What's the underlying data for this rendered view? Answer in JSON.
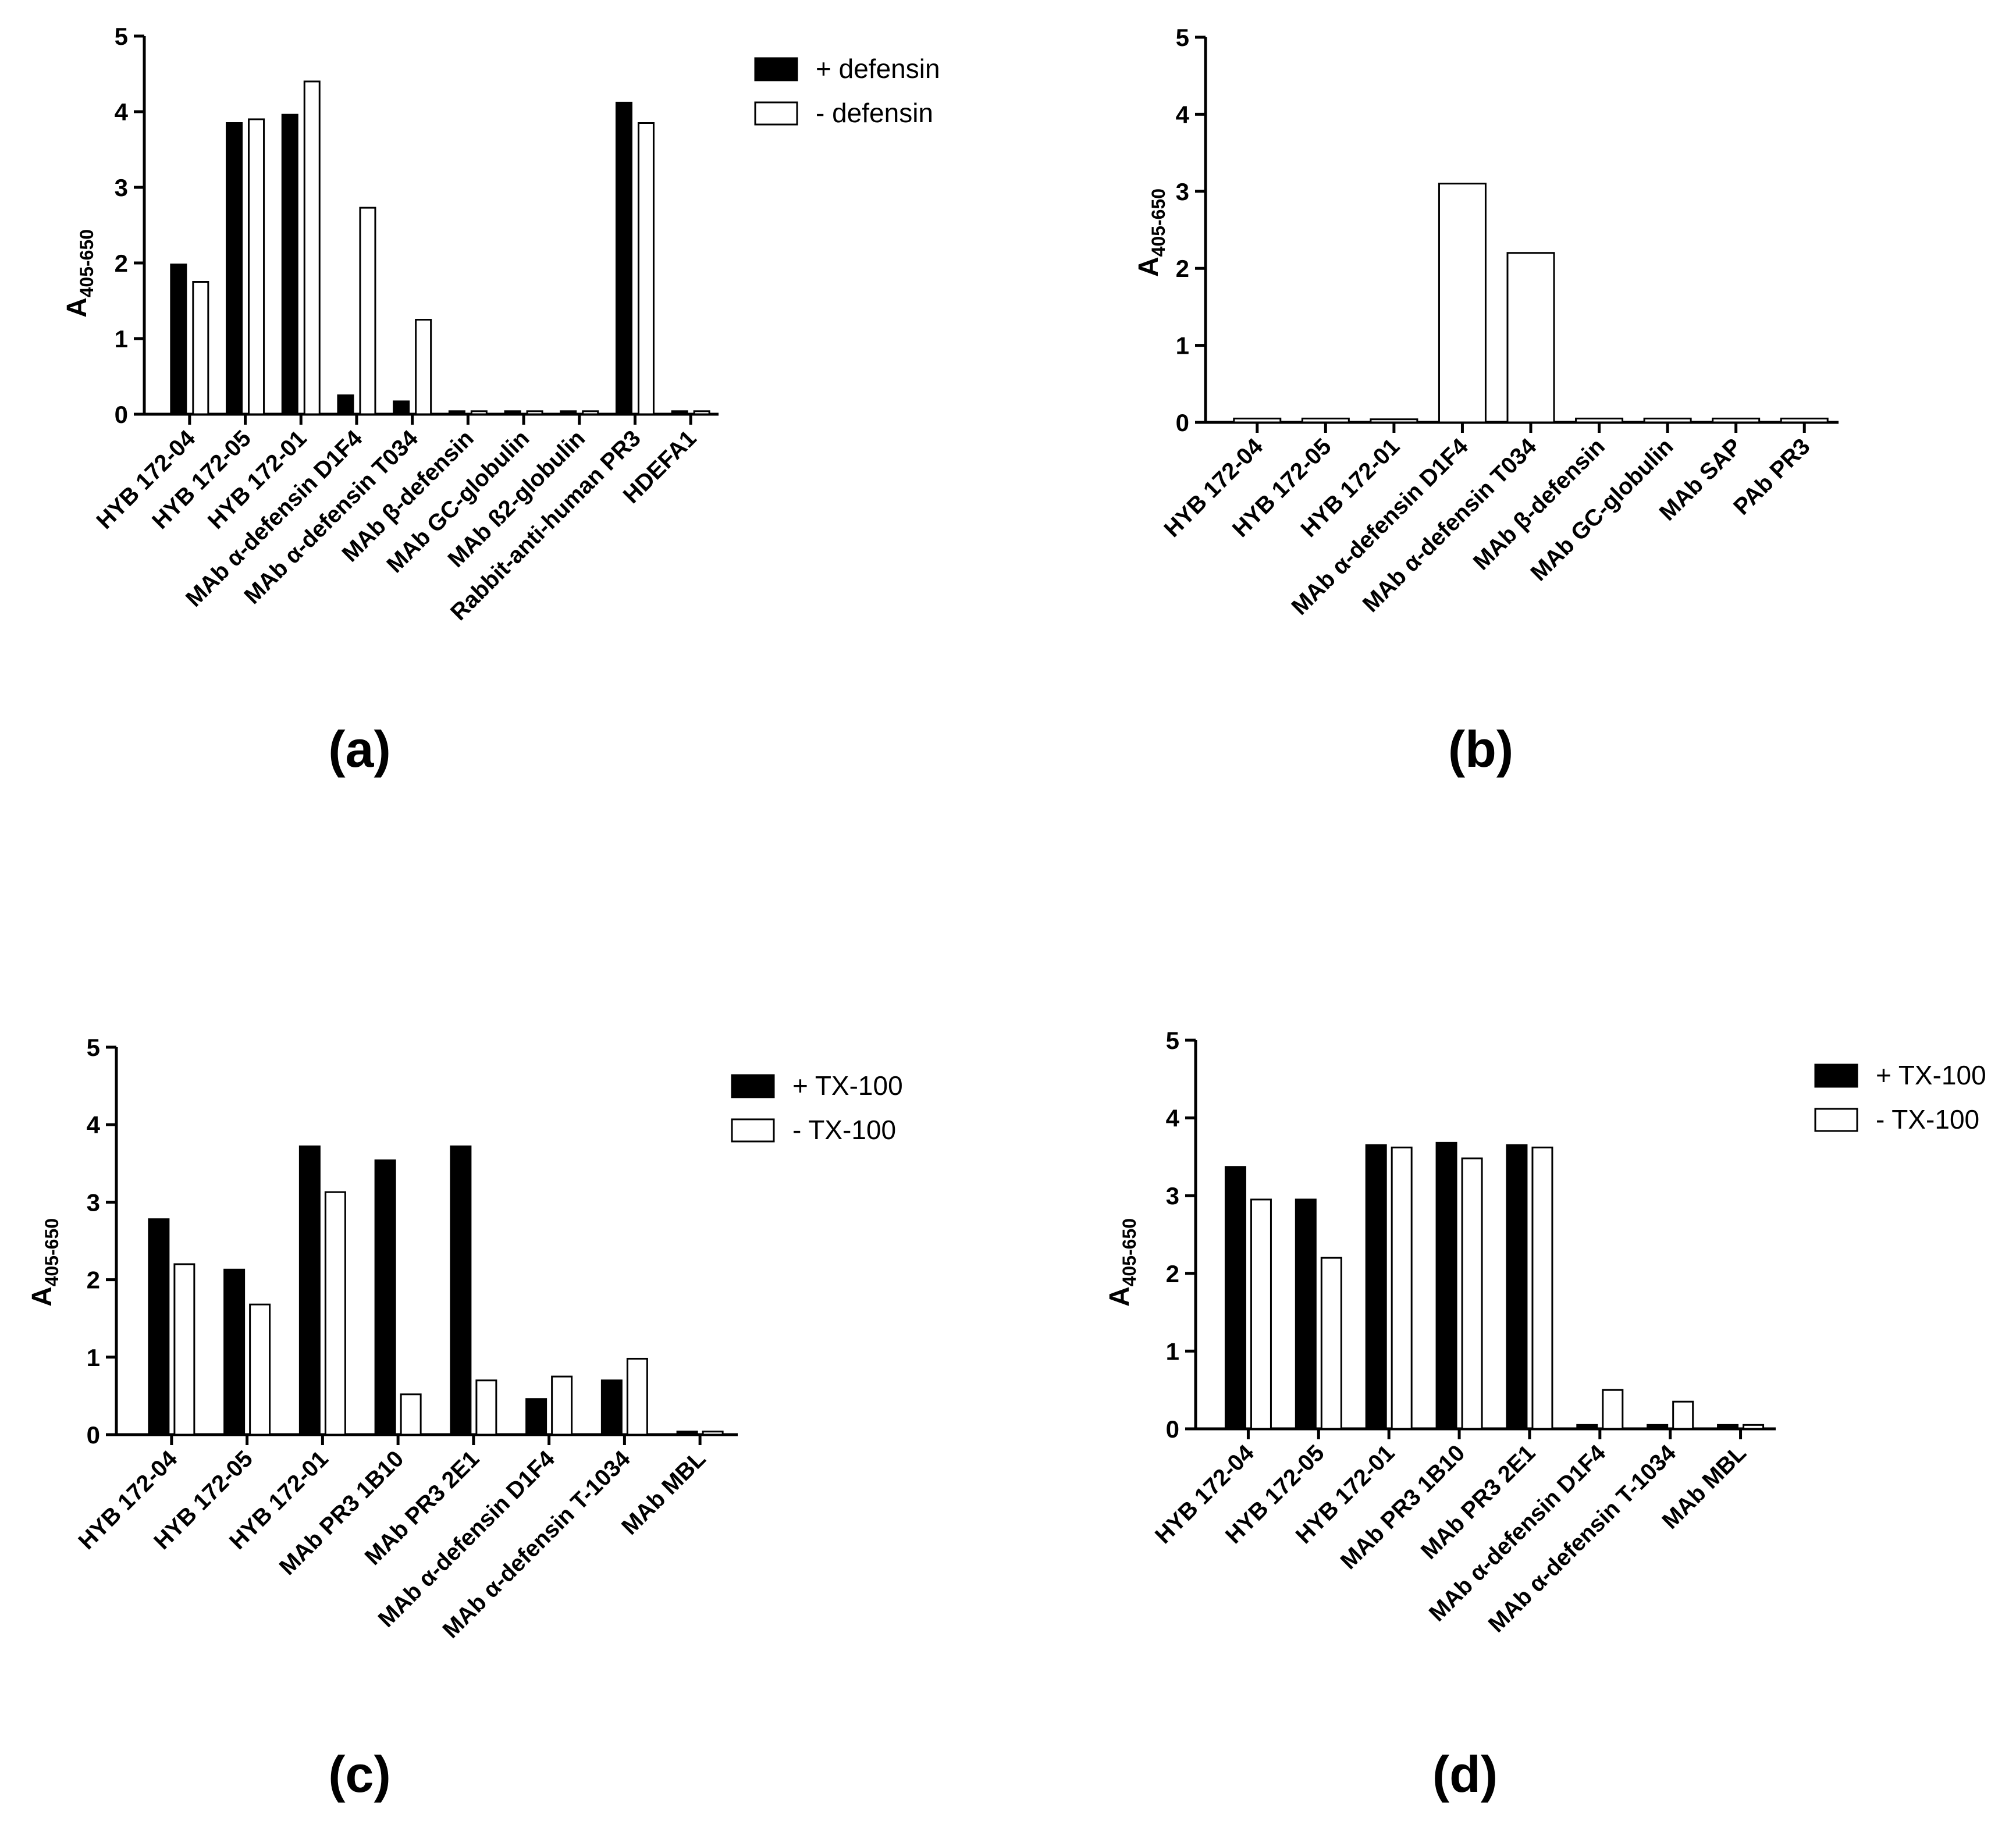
{
  "colors": {
    "filled": "#000000",
    "open": "#ffffff",
    "stroke": "#000000"
  },
  "chart_data": [
    {
      "type": "bar",
      "panel_label": "(a)",
      "ylabel": {
        "main": "A",
        "sub": "405-650"
      },
      "ylim": [
        0,
        5
      ],
      "yticks": [
        "0",
        "1",
        "2",
        "3",
        "4",
        "5"
      ],
      "categories": [
        "HYB 172-04",
        "HYB 172-05",
        "HYB 172-01",
        "MAb α-defensin D1F4",
        "MAb α-defensin T034",
        "MAb β-defensin",
        "MAb GC-globulin",
        "MAb ß2-globulin",
        "Rabbit-anti-human PR3",
        "HDEFA1"
      ],
      "series": [
        {
          "name": "+ defensin",
          "style": "filled",
          "values": [
            1.98,
            3.85,
            3.96,
            0.25,
            0.17,
            0.04,
            0.04,
            0.04,
            4.12,
            0.04
          ]
        },
        {
          "name": "- defensin",
          "style": "open",
          "values": [
            1.75,
            3.9,
            4.4,
            2.73,
            1.25,
            0.04,
            0.04,
            0.04,
            3.85,
            0.04
          ]
        }
      ],
      "legend_position": "top-right"
    },
    {
      "type": "bar",
      "panel_label": "(b)",
      "ylabel": {
        "main": "A",
        "sub": "405-650"
      },
      "ylim": [
        0,
        5
      ],
      "yticks": [
        "0",
        "1",
        "2",
        "3",
        "4",
        "5"
      ],
      "categories": [
        "HYB 172-04",
        "HYB 172-05",
        "HYB 172-01",
        "MAb α-defensin D1F4",
        "MAb α-defensin T034",
        "MAb β-defensin",
        "MAb GC-globulin",
        "MAb SAP",
        "PAb PR3"
      ],
      "series": [
        {
          "name": "",
          "style": "open",
          "values": [
            0.05,
            0.05,
            0.04,
            3.1,
            2.2,
            0.05,
            0.05,
            0.05,
            0.05
          ]
        }
      ],
      "legend_position": "none"
    },
    {
      "type": "bar",
      "panel_label": "(c)",
      "ylabel": {
        "main": "A",
        "sub": "405-650"
      },
      "ylim": [
        0,
        5
      ],
      "yticks": [
        "0",
        "1",
        "2",
        "3",
        "4",
        "5"
      ],
      "categories": [
        "HYB 172-04",
        "HYB 172-05",
        "HYB 172-01",
        "MAb PR3 1B10",
        "MAb PR3 2E1",
        "MAb α-defensin D1F4",
        "MAb α-defensin T-1034",
        "MAb MBL"
      ],
      "series": [
        {
          "name": "+ TX-100",
          "style": "filled",
          "values": [
            2.78,
            2.13,
            3.72,
            3.54,
            3.72,
            0.46,
            0.7,
            0.04
          ]
        },
        {
          "name": "- TX-100",
          "style": "open",
          "values": [
            2.2,
            1.68,
            3.13,
            0.52,
            0.7,
            0.75,
            0.98,
            0.04
          ]
        }
      ],
      "legend_position": "top-right"
    },
    {
      "type": "bar",
      "panel_label": "(d)",
      "ylabel": {
        "main": "A",
        "sub": "405-650"
      },
      "ylim": [
        0,
        5
      ],
      "yticks": [
        "0",
        "1",
        "2",
        "3",
        "4",
        "5"
      ],
      "categories": [
        "HYB 172-04",
        "HYB 172-05",
        "HYB 172-01",
        "MAb PR3 1B10",
        "MAb PR3 2E1",
        "MAb α-defensin D1F4",
        "MAb α-defensin T-1034",
        "MAb MBL"
      ],
      "series": [
        {
          "name": "+ TX-100",
          "style": "filled",
          "values": [
            3.37,
            2.95,
            3.65,
            3.68,
            3.65,
            0.05,
            0.05,
            0.05
          ]
        },
        {
          "name": "- TX-100",
          "style": "open",
          "values": [
            2.95,
            2.2,
            3.62,
            3.48,
            3.62,
            0.5,
            0.35,
            0.05
          ]
        }
      ],
      "legend_position": "top-right"
    }
  ]
}
